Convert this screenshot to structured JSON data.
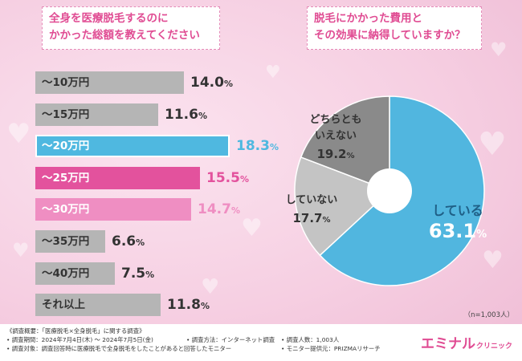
{
  "left_title": {
    "line1": "全身を医療脱毛するのに",
    "line2": "かかった総額を教えてください"
  },
  "right_title": {
    "line1": "脱毛にかかった費用と",
    "line2": "その効果に納得していますか？"
  },
  "sample_size": "（n=1,003人）",
  "colors": {
    "gray": "#b5b5b5",
    "blue": "#4fb8e0",
    "pink_dark": "#e3529d",
    "pink_light": "#ef8ec2",
    "pie_blue": "#51b6df",
    "pie_light_gray": "#c4c4c4",
    "pie_dark_gray": "#8a8a8a",
    "center": "#ffffff"
  },
  "chart_data": [
    {
      "type": "bar",
      "orientation": "horizontal",
      "title": "全身を医療脱毛するのにかかった総額を教えてください",
      "unit": "%",
      "categories": [
        "～10万円",
        "～15万円",
        "～20万円",
        "～25万円",
        "～30万円",
        "～35万円",
        "～40万円",
        "それ以上"
      ],
      "values": [
        14.0,
        11.6,
        18.3,
        15.5,
        14.7,
        6.6,
        7.5,
        11.8
      ],
      "labels": [
        "14.0",
        "11.6",
        "18.3",
        "15.5",
        "14.7",
        "6.6",
        "7.5",
        "11.8"
      ],
      "highlight": [
        "gray",
        "gray",
        "blue",
        "pink_dark",
        "pink_light",
        "gray",
        "gray",
        "gray"
      ],
      "xlim": [
        0,
        18.3
      ]
    },
    {
      "type": "pie",
      "style": "donut",
      "title": "脱毛にかかった費用とその効果に納得していますか？",
      "unit": "%",
      "slices": [
        {
          "label_lines": [
            "している"
          ],
          "value": 63.1,
          "label": "63.1",
          "color": "pie_blue"
        },
        {
          "label_lines": [
            "していない"
          ],
          "value": 17.7,
          "label": "17.7",
          "color": "pie_light_gray"
        },
        {
          "label_lines": [
            "どちらとも",
            "いえない"
          ],
          "value": 19.2,
          "label": "19.2",
          "color": "pie_dark_gray"
        }
      ]
    }
  ],
  "footnotes": {
    "summary": "《調査概要：「医療脱毛×全身脱毛」に関する調査》",
    "period": "• 調査期間：2024年7月4日(木) ～ 2024年7月5日(金)",
    "method": "• 調査方法：インターネット調査",
    "count": "• 調査人数：1,003人",
    "target": "• 調査対象：調査回答時に医療脱毛で全身脱毛をしたことがあると回答したモニター",
    "provider": "• モニター提供元：PRIZMAリサーチ"
  },
  "brand": {
    "name": "エミナル",
    "suffix": "クリニック"
  }
}
